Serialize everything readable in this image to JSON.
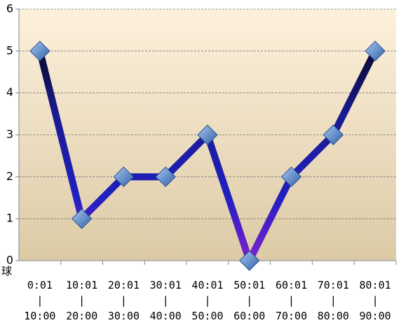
{
  "chart_data": {
    "type": "line",
    "ylabel": "球",
    "categories": [
      "0:01\n|\n10:00",
      "10:01\n|\n20:00",
      "20:01\n|\n30:00",
      "30:01\n|\n40:00",
      "40:01\n|\n50:00",
      "50:01\n|\n60:00",
      "60:01\n|\n70:00",
      "70:01\n|\n80:00",
      "80:01\n|\n90:00"
    ],
    "values": [
      5,
      1,
      2,
      2,
      3,
      0,
      2,
      3,
      5
    ],
    "color": "#2a1fb0",
    "ylim": [
      0,
      6
    ],
    "yticks": [
      0,
      1,
      2,
      3,
      4,
      5,
      6
    ],
    "grid": true
  }
}
